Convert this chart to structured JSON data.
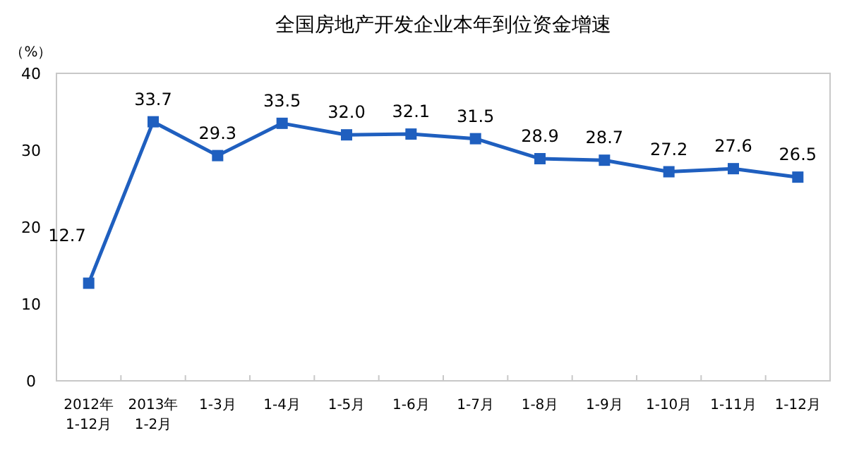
{
  "chart_data": {
    "type": "line",
    "title": "全国房地产开发企业本年到位资金增速",
    "ylabel": "（%）",
    "categories": [
      "2012年\n1-12月",
      "2013年\n1-2月",
      "1-3月",
      "1-4月",
      "1-5月",
      "1-6月",
      "1-7月",
      "1-8月",
      "1-9月",
      "1-10月",
      "1-11月",
      "1-12月"
    ],
    "values": [
      12.7,
      33.7,
      29.3,
      33.5,
      32.0,
      32.1,
      31.5,
      28.9,
      28.7,
      27.2,
      27.6,
      26.5
    ],
    "value_labels": [
      "12.7",
      "33.7",
      "29.3",
      "33.5",
      "32.0",
      "32.1",
      "31.5",
      "28.9",
      "28.7",
      "27.2",
      "27.6",
      "26.5"
    ],
    "color": "#1f5fbf",
    "marker": "square",
    "ylim": [
      0,
      40
    ],
    "yticks": [
      0,
      10,
      20,
      30,
      40
    ]
  }
}
